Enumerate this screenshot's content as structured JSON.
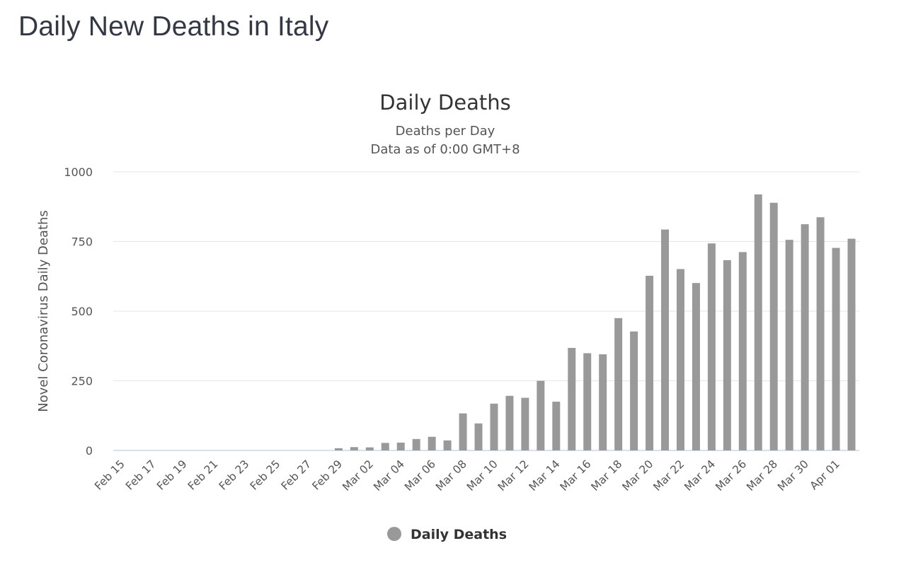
{
  "page": {
    "title": "Daily New Deaths in Italy"
  },
  "chart_data": {
    "type": "bar",
    "title": "Daily Deaths",
    "subtitle_lines": [
      "Deaths per Day",
      "Data as of 0:00 GMT+8"
    ],
    "xlabel": "",
    "ylabel": "Novel Coronavirus Daily Deaths",
    "ylim": [
      0,
      1000
    ],
    "yticks": [
      0,
      250,
      500,
      750,
      1000
    ],
    "grid": true,
    "legend_position": "bottom-center",
    "bar_color": "#999999",
    "categories": [
      "Feb 15",
      "Feb 16",
      "Feb 17",
      "Feb 18",
      "Feb 19",
      "Feb 20",
      "Feb 21",
      "Feb 22",
      "Feb 23",
      "Feb 24",
      "Feb 25",
      "Feb 26",
      "Feb 27",
      "Feb 28",
      "Feb 29",
      "Mar 01",
      "Mar 02",
      "Mar 03",
      "Mar 04",
      "Mar 05",
      "Mar 06",
      "Mar 07",
      "Mar 08",
      "Mar 09",
      "Mar 10",
      "Mar 11",
      "Mar 12",
      "Mar 13",
      "Mar 14",
      "Mar 15",
      "Mar 16",
      "Mar 17",
      "Mar 18",
      "Mar 19",
      "Mar 20",
      "Mar 21",
      "Mar 22",
      "Mar 23",
      "Mar 24",
      "Mar 25",
      "Mar 26",
      "Mar 27",
      "Mar 28",
      "Mar 29",
      "Mar 30",
      "Mar 31",
      "Apr 01",
      "Apr 02"
    ],
    "xtick_labels": [
      "Feb 15",
      "Feb 17",
      "Feb 19",
      "Feb 21",
      "Feb 23",
      "Feb 25",
      "Feb 27",
      "Feb 29",
      "Mar 02",
      "Mar 04",
      "Mar 06",
      "Mar 08",
      "Mar 10",
      "Mar 12",
      "Mar 14",
      "Mar 16",
      "Mar 18",
      "Mar 20",
      "Mar 22",
      "Mar 24",
      "Mar 26",
      "Mar 28",
      "Mar 30",
      "Apr 01"
    ],
    "series": [
      {
        "name": "Daily Deaths",
        "values": [
          0,
          0,
          0,
          0,
          0,
          0,
          0,
          0,
          0,
          0,
          0,
          0,
          0,
          0,
          8,
          12,
          11,
          27,
          28,
          41,
          49,
          36,
          133,
          97,
          168,
          196,
          189,
          250,
          175,
          368,
          349,
          345,
          475,
          427,
          627,
          793,
          651,
          601,
          743,
          683,
          712,
          919,
          889,
          756,
          812,
          837,
          727,
          760
        ]
      }
    ]
  }
}
